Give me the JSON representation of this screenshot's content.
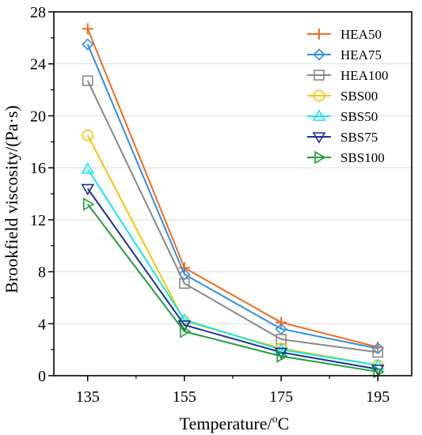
{
  "chart_data": {
    "type": "line",
    "xlabel": "Temperature/",
    "xlabel_sup": "o",
    "xlabel_unit": "C",
    "ylabel": "Brookfield viscosity/(Pa·s)",
    "x": [
      135,
      155,
      175,
      195
    ],
    "x_ticks": [
      "135",
      "155",
      "175",
      "195"
    ],
    "xlim": [
      128,
      202
    ],
    "ylim": [
      0,
      28
    ],
    "y_ticks": [
      "0",
      "4",
      "8",
      "12",
      "16",
      "20",
      "24",
      "28"
    ],
    "grid": "horizontal",
    "legend_position": "top-right",
    "series": [
      {
        "name": "HEA50",
        "color": "#f26b1d",
        "marker": "plus",
        "values": [
          26.7,
          8.3,
          4.1,
          2.2
        ]
      },
      {
        "name": "HEA75",
        "color": "#2f8ee8",
        "marker": "diamond",
        "values": [
          25.5,
          7.8,
          3.6,
          2.1
        ]
      },
      {
        "name": "HEA100",
        "color": "#888888",
        "marker": "square",
        "values": [
          22.7,
          7.1,
          2.8,
          1.8
        ]
      },
      {
        "name": "SBS00",
        "color": "#f5c400",
        "marker": "circle",
        "values": [
          18.5,
          4.2,
          2.1,
          0.8
        ]
      },
      {
        "name": "SBS50",
        "color": "#14e6f0",
        "marker": "triangle-up",
        "values": [
          15.9,
          4.3,
          2.0,
          0.8
        ]
      },
      {
        "name": "SBS75",
        "color": "#1a2f9c",
        "marker": "triangle-down",
        "values": [
          14.4,
          3.9,
          1.8,
          0.5
        ]
      },
      {
        "name": "SBS100",
        "color": "#1f9e3a",
        "marker": "triangle-right",
        "values": [
          13.2,
          3.4,
          1.5,
          0.3
        ]
      }
    ]
  }
}
